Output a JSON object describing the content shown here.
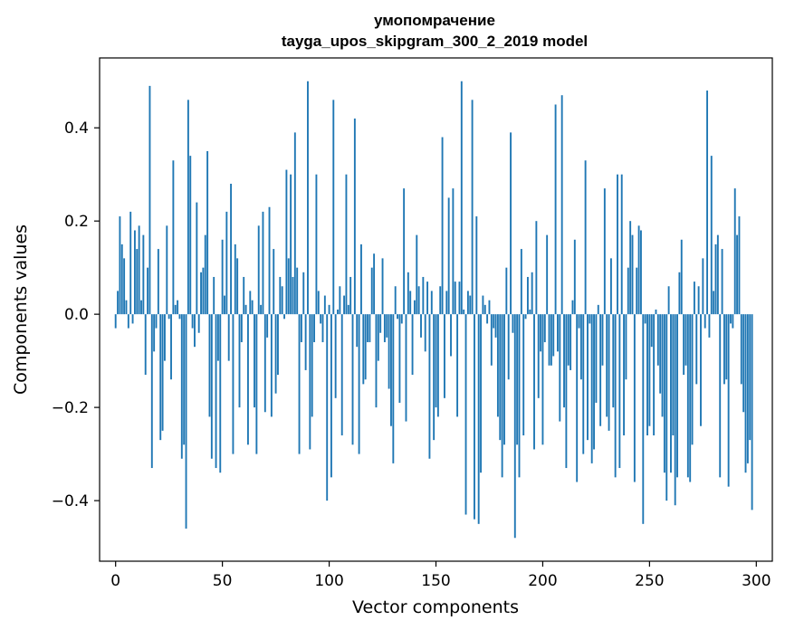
{
  "chart_data": {
    "type": "bar",
    "title": "умопомрачение",
    "subtitle": "tayga_upos_skipgram_300_2_2019 model",
    "xlabel": "Vector components",
    "ylabel": "Components values",
    "xlim": [
      -7.5,
      307.5
    ],
    "ylim": [
      -0.53,
      0.55
    ],
    "x_ticks": [
      0,
      50,
      100,
      150,
      200,
      250,
      300
    ],
    "x_tick_labels": [
      "0",
      "50",
      "100",
      "150",
      "200",
      "250",
      "300"
    ],
    "y_ticks": [
      -0.4,
      -0.2,
      0.0,
      0.2,
      0.4
    ],
    "y_tick_labels": [
      "−0.4",
      "−0.2",
      "0.0",
      "0.2",
      "0.4"
    ],
    "color": "#1f77b4",
    "values": [
      -0.03,
      0.05,
      0.21,
      0.15,
      0.12,
      0.03,
      -0.03,
      0.22,
      -0.02,
      0.18,
      0.14,
      0.19,
      0.03,
      0.17,
      -0.13,
      0.1,
      0.49,
      -0.33,
      -0.08,
      -0.03,
      0.14,
      -0.27,
      -0.25,
      -0.1,
      0.19,
      -0.01,
      -0.14,
      0.33,
      0.02,
      0.03,
      -0.01,
      -0.31,
      -0.28,
      -0.46,
      0.46,
      0.34,
      -0.03,
      -0.07,
      0.24,
      -0.04,
      0.09,
      0.1,
      0.17,
      0.35,
      -0.22,
      -0.31,
      0.08,
      -0.33,
      -0.1,
      -0.34,
      0.16,
      0.04,
      0.22,
      -0.1,
      0.28,
      -0.3,
      0.15,
      0.12,
      -0.2,
      -0.06,
      0.08,
      0.02,
      -0.28,
      0.05,
      0.03,
      -0.2,
      -0.3,
      0.19,
      0.02,
      0.22,
      -0.21,
      -0.05,
      0.23,
      -0.22,
      0.14,
      -0.17,
      -0.13,
      0.08,
      0.06,
      -0.01,
      0.31,
      0.12,
      0.3,
      0.08,
      0.39,
      0.1,
      -0.3,
      -0.06,
      0.09,
      -0.12,
      0.5,
      -0.29,
      -0.22,
      -0.06,
      0.3,
      0.05,
      -0.02,
      -0.06,
      0.04,
      -0.4,
      0.02,
      -0.35,
      0.46,
      -0.18,
      0.01,
      0.06,
      -0.26,
      0.04,
      0.3,
      0.02,
      0.08,
      -0.28,
      0.42,
      -0.07,
      -0.3,
      0.15,
      -0.15,
      -0.14,
      -0.06,
      -0.06,
      0.1,
      0.13,
      -0.2,
      -0.1,
      -0.04,
      0.12,
      -0.06,
      -0.05,
      -0.16,
      -0.24,
      -0.32,
      0.06,
      -0.01,
      -0.19,
      -0.02,
      0.27,
      -0.23,
      0.09,
      0.05,
      -0.13,
      0.03,
      0.17,
      0.06,
      -0.05,
      0.08,
      -0.08,
      0.07,
      -0.31,
      0.05,
      -0.27,
      -0.2,
      -0.22,
      0.06,
      0.38,
      -0.18,
      0.05,
      0.25,
      -0.09,
      0.27,
      0.07,
      -0.22,
      0.07,
      0.5,
      0.01,
      -0.43,
      0.05,
      0.04,
      0.46,
      -0.44,
      0.21,
      -0.45,
      -0.34,
      0.04,
      0.02,
      -0.02,
      0.03,
      -0.11,
      -0.03,
      -0.05,
      -0.22,
      -0.27,
      -0.35,
      -0.28,
      0.1,
      -0.14,
      0.39,
      -0.04,
      -0.48,
      -0.28,
      -0.35,
      0.14,
      -0.26,
      -0.01,
      0.08,
      0.01,
      0.09,
      -0.29,
      0.2,
      -0.18,
      -0.08,
      -0.28,
      -0.06,
      0.17,
      -0.11,
      -0.11,
      -0.09,
      0.45,
      -0.08,
      -0.23,
      0.47,
      -0.2,
      -0.33,
      -0.11,
      -0.12,
      0.03,
      0.16,
      -0.36,
      -0.03,
      -0.14,
      -0.3,
      0.33,
      -0.27,
      -0.02,
      -0.32,
      -0.29,
      -0.19,
      0.02,
      -0.24,
      -0.11,
      0.27,
      -0.22,
      -0.25,
      0.12,
      -0.2,
      -0.35,
      0.3,
      -0.33,
      0.3,
      -0.26,
      -0.14,
      0.1,
      0.2,
      0.17,
      -0.36,
      0.1,
      0.19,
      0.18,
      -0.45,
      -0.02,
      -0.26,
      -0.24,
      -0.07,
      -0.26,
      0.01,
      -0.11,
      -0.17,
      -0.22,
      -0.34,
      -0.4,
      0.06,
      -0.34,
      -0.26,
      -0.41,
      -0.35,
      0.09,
      0.16,
      -0.13,
      -0.11,
      -0.35,
      -0.36,
      -0.28,
      0.07,
      -0.15,
      0.06,
      -0.24,
      0.12,
      -0.03,
      0.48,
      -0.05,
      0.34,
      0.05,
      0.15,
      0.17,
      -0.35,
      0.14,
      -0.15,
      -0.14,
      -0.37,
      -0.02,
      -0.03,
      0.27,
      0.17,
      0.21,
      -0.15,
      -0.21,
      -0.34,
      -0.32,
      -0.27,
      -0.42
    ]
  }
}
